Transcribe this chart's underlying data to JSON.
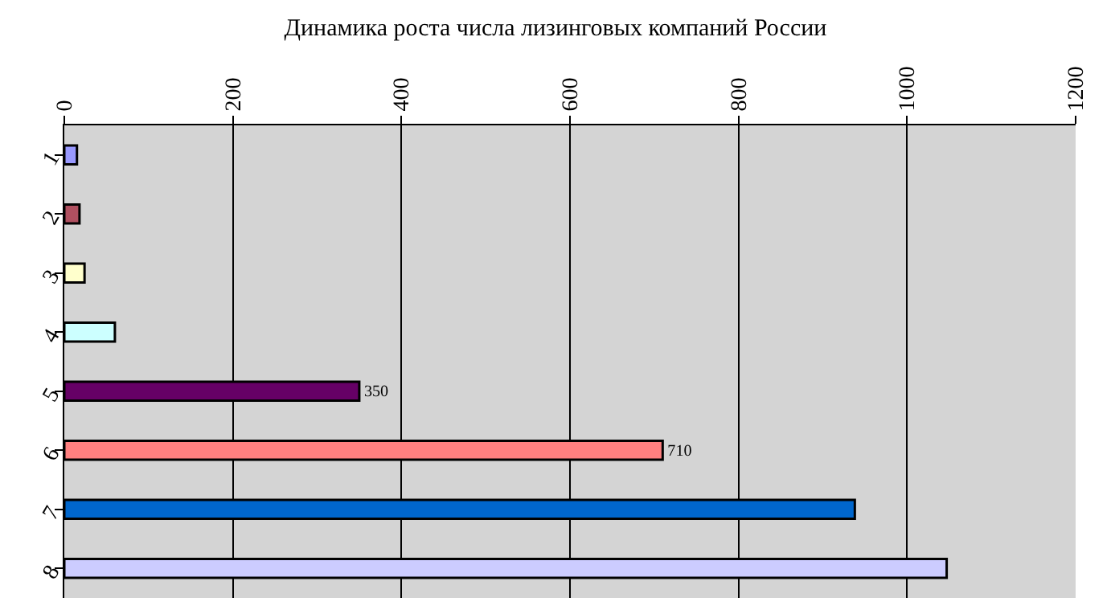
{
  "chart_data": {
    "type": "bar",
    "orientation": "horizontal",
    "title": "Динамика роста числа лизинговых компаний России",
    "categories": [
      "1",
      "2",
      "3",
      "4",
      "5",
      "6",
      "7",
      "8"
    ],
    "values": [
      15,
      18,
      24,
      60,
      350,
      710,
      938,
      1047
    ],
    "colors": [
      "#9999ff",
      "#b05060",
      "#ffffcc",
      "#ccffff",
      "#660066",
      "#ff8080",
      "#0066cc",
      "#ccccff"
    ],
    "value_labels": [
      null,
      null,
      null,
      null,
      "350",
      "710",
      null,
      null
    ],
    "xlim": [
      0,
      1200
    ],
    "xticks": [
      0,
      200,
      400,
      600,
      800,
      1000,
      1200
    ],
    "grid": "x",
    "legend": false
  }
}
